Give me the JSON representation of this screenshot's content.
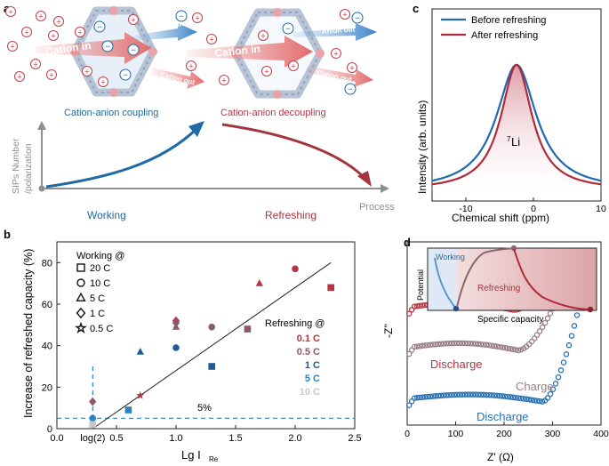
{
  "panel_labels": {
    "a": "a",
    "b": "b",
    "c": "c",
    "d": "d"
  },
  "panel_a": {
    "cation_in_1": "Cation in",
    "anion_out_1": "Anion out",
    "cation_out_1": "Cation out",
    "cation_in_2": "Cation in",
    "anion_out_2": "Anion out",
    "cation_out_2": "Cation out",
    "caption_left": "Cation-anion coupling",
    "caption_right": "Cation-anion decoupling",
    "ylabel_line1": "SIPs Number",
    "ylabel_line2": "/polarization",
    "xlabel": "Process",
    "working": "Working",
    "refreshing": "Refreshing",
    "plus": "+",
    "minus": "−",
    "colors": {
      "blue": "#1f6aa5",
      "red": "#b03a48"
    }
  },
  "panel_c": {
    "legend_before": "Before refreshing",
    "legend_after": "After refreshing",
    "ylabel": "Intensity (arb. units)",
    "xlabel": "Chemical shift (ppm)",
    "peak_label_sup": "7",
    "peak_label": "Li",
    "xticks": [
      "-10",
      "0",
      "10"
    ],
    "colors": {
      "before": "#2068b0",
      "after": "#b02a3a"
    }
  },
  "chart_data": [
    {
      "type": "scatter",
      "panel": "b",
      "ylabel": "Increase of refreshed capacity (%)",
      "xlabel": "Lg I",
      "xlabel_sub": "Re",
      "xlim": [
        0,
        2.5
      ],
      "ylim": [
        0,
        90
      ],
      "xticks": [
        "0.0",
        "0.5",
        "1.0",
        "1.5",
        "2.0",
        "2.5"
      ],
      "xtick_values": [
        0,
        0.5,
        1.0,
        1.5,
        2.0,
        2.5
      ],
      "extra_xtick": "log(2)",
      "extra_xtick_value": 0.301,
      "yticks": [
        "0",
        "20",
        "40",
        "60",
        "80"
      ],
      "ytick_values": [
        0,
        20,
        40,
        60,
        80
      ],
      "legend_title": "Working @",
      "legend": [
        "20 C",
        "10 C",
        "5 C",
        "1 C",
        "0.5 C"
      ],
      "legend_markers": [
        "square",
        "circle",
        "triangle",
        "diamond",
        "star"
      ],
      "refresh_title": "Refreshing @",
      "refresh_legend": [
        {
          "label": "0.1 C",
          "color": "#b8343f"
        },
        {
          "label": "0.5 C",
          "color": "#8a5a66"
        },
        {
          "label": "1 C",
          "color": "#1f5c96"
        },
        {
          "label": "5 C",
          "color": "#2a82c0"
        },
        {
          "label": "10 C",
          "color": "#c8c8c8"
        }
      ],
      "threshold_label": "5%",
      "threshold": 5,
      "trend_line": [
        [
          0.3,
          0
        ],
        [
          2.3,
          80
        ]
      ],
      "points": [
        {
          "x": 2.3,
          "y": 68,
          "marker": "square",
          "color": "#b8343f"
        },
        {
          "x": 2.0,
          "y": 77,
          "marker": "circle",
          "color": "#b8343f"
        },
        {
          "x": 1.7,
          "y": 70,
          "marker": "triangle",
          "color": "#b8343f"
        },
        {
          "x": 1.0,
          "y": 52,
          "marker": "diamond",
          "color": "#b8343f"
        },
        {
          "x": 0.7,
          "y": 16,
          "marker": "star",
          "color": "#b8343f"
        },
        {
          "x": 1.6,
          "y": 48,
          "marker": "square",
          "color": "#8a5a66"
        },
        {
          "x": 1.3,
          "y": 49,
          "marker": "circle",
          "color": "#8a5a66"
        },
        {
          "x": 1.0,
          "y": 49,
          "marker": "triangle",
          "color": "#8a5a66"
        },
        {
          "x": 1.0,
          "y": 51,
          "marker": "diamond",
          "color": "#8a5a66"
        },
        {
          "x": 0.3,
          "y": 13,
          "marker": "diamond",
          "color": "#8a5a66"
        },
        {
          "x": 1.3,
          "y": 30,
          "marker": "square",
          "color": "#1f5c96"
        },
        {
          "x": 1.0,
          "y": 39,
          "marker": "circle",
          "color": "#1f5c96"
        },
        {
          "x": 0.7,
          "y": 37,
          "marker": "triangle",
          "color": "#1f5c96"
        },
        {
          "x": 0.6,
          "y": 9,
          "marker": "square",
          "color": "#2a82c0"
        },
        {
          "x": 0.3,
          "y": 5,
          "marker": "circle",
          "color": "#2a82c0"
        },
        {
          "x": 0.3,
          "y": 2,
          "marker": "square",
          "color": "#c8c8c8"
        }
      ]
    },
    {
      "type": "line",
      "panel": "c",
      "xlabel": "Chemical shift (ppm)",
      "ylabel": "Intensity (arb. units)",
      "xlim": [
        -15,
        10
      ],
      "series": [
        {
          "name": "Before refreshing",
          "center": -2.5,
          "width": 3.6,
          "color": "#2068b0"
        },
        {
          "name": "After refreshing",
          "center": -2.5,
          "width": 2.8,
          "color": "#b02a3a"
        }
      ]
    },
    {
      "type": "scatter",
      "panel": "d",
      "xlabel": "Z' (Ω)",
      "ylabel": "-Z''",
      "xlim": [
        0,
        400
      ],
      "xticks": [
        "0",
        "100",
        "200",
        "300",
        "400"
      ],
      "xtick_values": [
        0,
        100,
        200,
        300,
        400
      ],
      "series": [
        {
          "name": "Discharge",
          "color": "#b8343f",
          "offset": 0.55,
          "tail_start": 220,
          "tail_end": 400,
          "plateau": 110
        },
        {
          "name": "Charge",
          "color": "#9a7f86",
          "offset": 0.33,
          "tail_start": 230,
          "tail_end": 370,
          "plateau": 140
        },
        {
          "name": "Discharge",
          "color": "#2a72b5",
          "offset": 0.05,
          "tail_start": 280,
          "tail_end": 380,
          "plateau": 170
        }
      ],
      "inset": {
        "ylabel": "Potential",
        "xlabel": "Specific capacity",
        "working": "Working",
        "refreshing": "Refreshing"
      }
    }
  ]
}
